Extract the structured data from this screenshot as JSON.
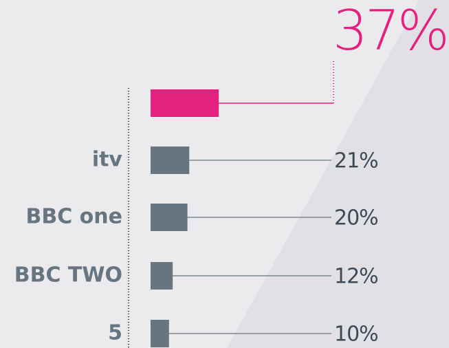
{
  "chart_data": {
    "type": "bar",
    "orientation": "horizontal",
    "categories": [
      null,
      "itv",
      "BBC one",
      "BBC TWO",
      "5"
    ],
    "values": [
      37,
      21,
      20,
      12,
      10
    ],
    "value_labels": [
      "37%",
      "21%",
      "20%",
      "12%",
      "10%"
    ],
    "colors": [
      "#e5217f",
      "#66757f",
      "#66757f",
      "#66757f",
      "#66757f"
    ]
  }
}
